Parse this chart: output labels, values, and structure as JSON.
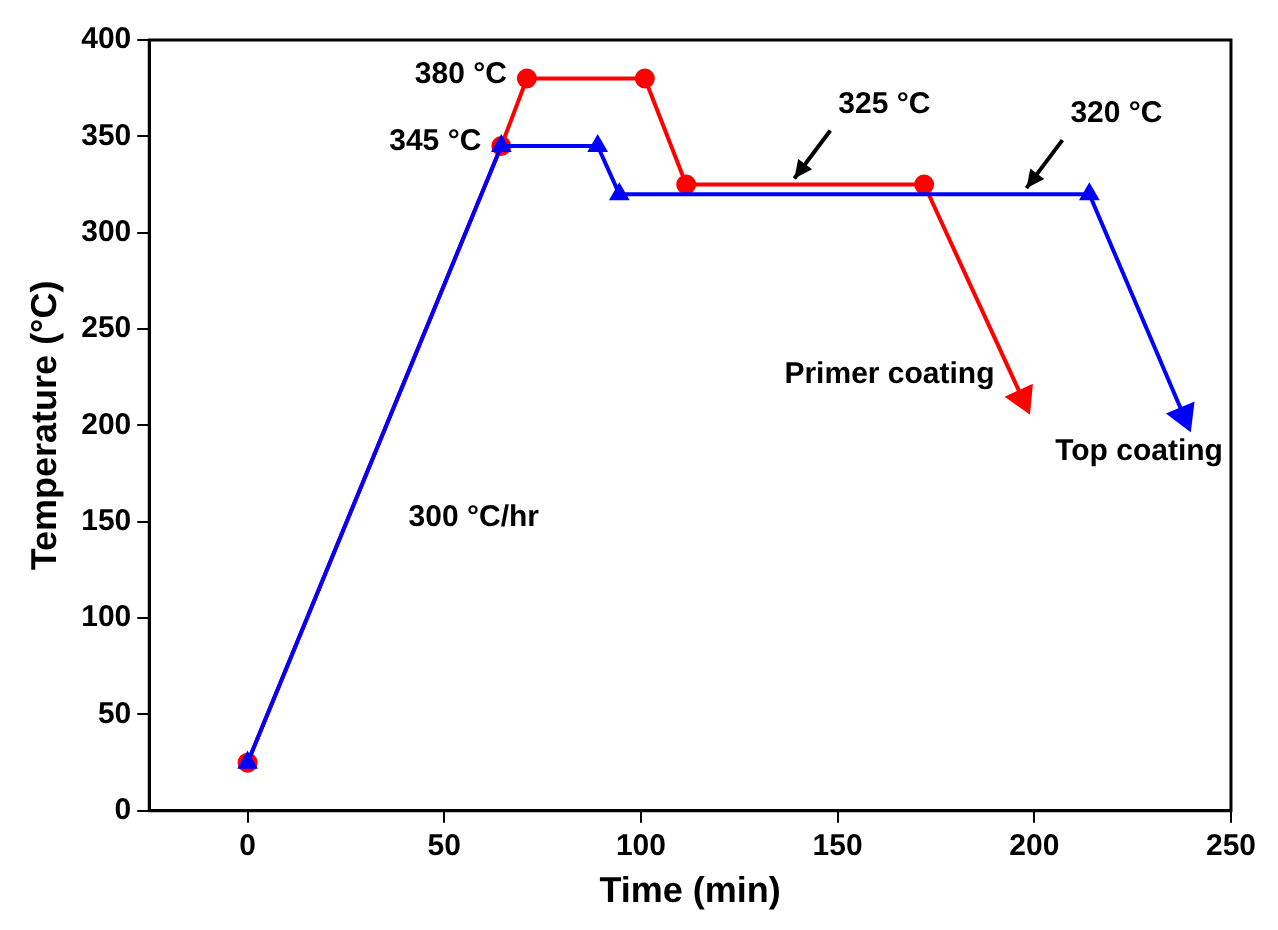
{
  "chart_data": {
    "type": "line",
    "xlabel": "Time (min)",
    "ylabel": "Temperature (°C)",
    "xlim": [
      -25,
      250
    ],
    "xticks": [
      0,
      50,
      100,
      150,
      200,
      250
    ],
    "ylim": [
      0,
      400
    ],
    "yticks": [
      0,
      50,
      100,
      150,
      200,
      250,
      300,
      350,
      400
    ],
    "grid": false,
    "legend": false,
    "series": [
      {
        "name": "Primer coating",
        "color": "#ff0000",
        "marker": "circle",
        "x": [
          0,
          64.5,
          71,
          101,
          111.5,
          172,
          197
        ],
        "values": [
          25,
          345,
          380,
          380,
          325,
          325,
          214
        ]
      },
      {
        "name": "Top coating",
        "color": "#0000ff",
        "marker": "triangle",
        "x": [
          0,
          64.5,
          89,
          94.5,
          214,
          238
        ],
        "values": [
          25,
          345,
          345,
          320,
          320,
          205
        ]
      }
    ],
    "annotations": [
      {
        "text": "380 °C",
        "x": 71,
        "y": 380
      },
      {
        "text": "345 °C",
        "x": 64.5,
        "y": 345
      },
      {
        "text": "325 °C",
        "x": 139,
        "y": 325
      },
      {
        "text": "320 °C",
        "x": 198,
        "y": 320
      },
      "300 °C/hr"
    ]
  }
}
